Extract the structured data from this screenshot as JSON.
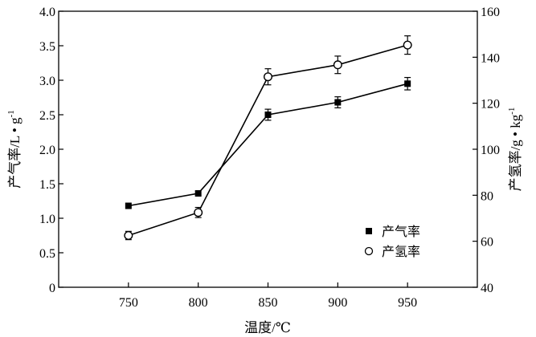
{
  "chart_data": {
    "type": "line",
    "title": "",
    "x": [
      750,
      800,
      850,
      900,
      950
    ],
    "xlabel": "温度/℃",
    "xlim": [
      700,
      1000
    ],
    "xticks": [
      750,
      800,
      850,
      900,
      950
    ],
    "y_left": {
      "label_text": "产气率/L • g",
      "label_sup": "-1",
      "lim": [
        0,
        4.0
      ],
      "ticks": [
        "0",
        "0.5",
        "1.0",
        "1.5",
        "2.0",
        "2.5",
        "3.0",
        "3.5",
        "4.0"
      ]
    },
    "y_right": {
      "label_text": "产氢率/g • kg",
      "label_sup": "-1",
      "lim": [
        40,
        160
      ],
      "ticks": [
        "40",
        "60",
        "80",
        "100",
        "120",
        "140",
        "160"
      ]
    },
    "series": [
      {
        "name": "产气率",
        "axis": "left",
        "marker": "filled-square",
        "values": [
          1.18,
          1.36,
          2.5,
          2.68,
          2.95
        ],
        "errors": [
          0,
          0,
          0.08,
          0.08,
          0.09
        ]
      },
      {
        "name": "产氢率",
        "axis": "right",
        "marker": "open-circle",
        "values": [
          62.5,
          72.5,
          131.5,
          136.7,
          145.3
        ],
        "errors": [
          1.8,
          2.2,
          3.5,
          3.8,
          4.0
        ]
      }
    ],
    "legend_position": "lower-right",
    "grid": false
  }
}
